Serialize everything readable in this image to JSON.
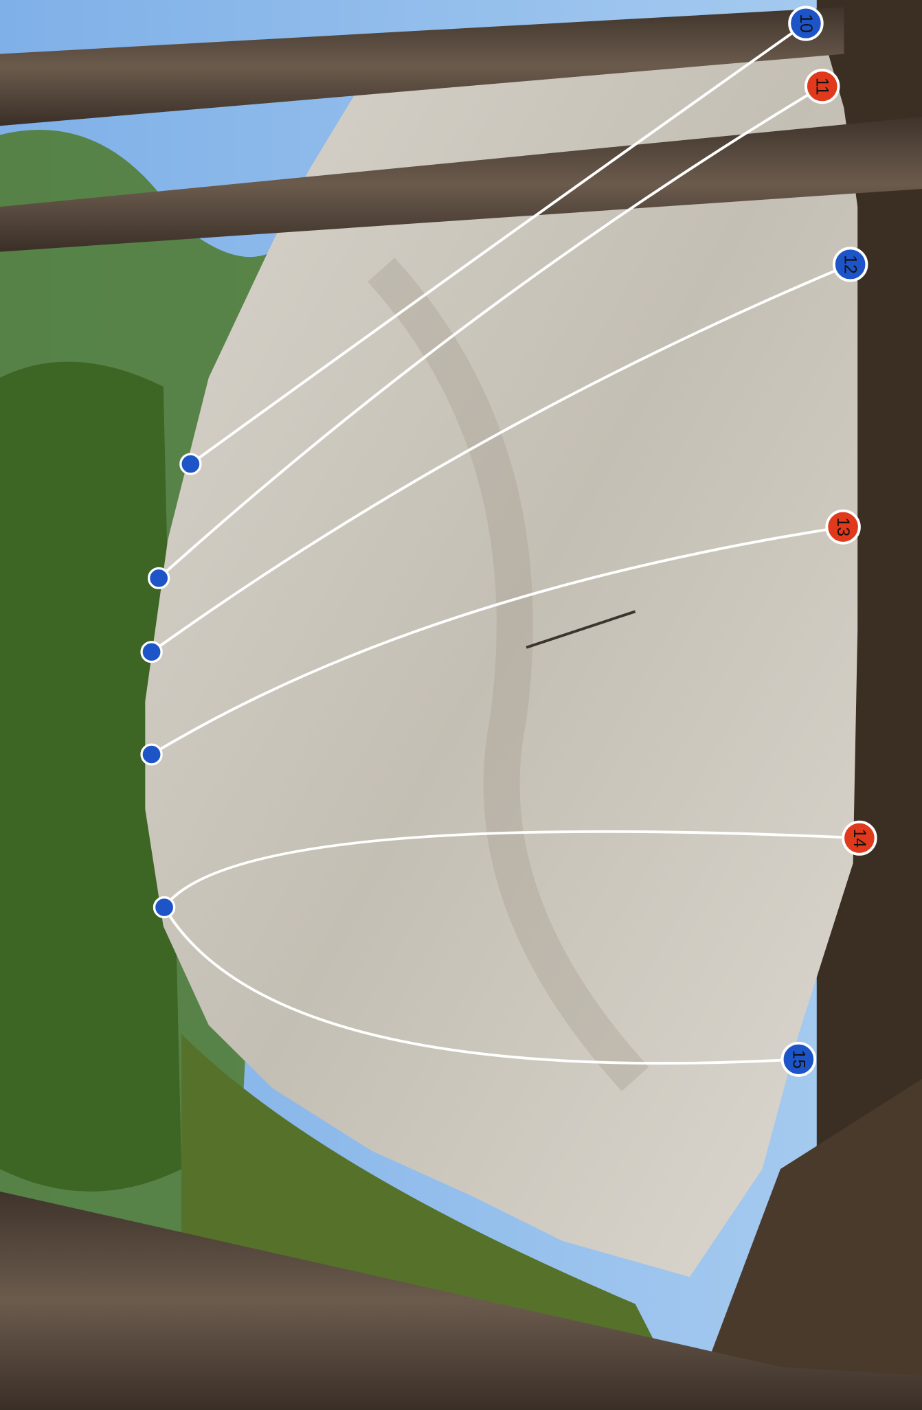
{
  "routes": [
    {
      "label": "10",
      "color": "#1d55c8"
    },
    {
      "label": "11",
      "color": "#e0391b"
    },
    {
      "label": "12",
      "color": "#1d55c8"
    },
    {
      "label": "13",
      "color": "#e0391b"
    },
    {
      "label": "14",
      "color": "#e0391b"
    },
    {
      "label": "15",
      "color": "#1d55c8"
    }
  ]
}
